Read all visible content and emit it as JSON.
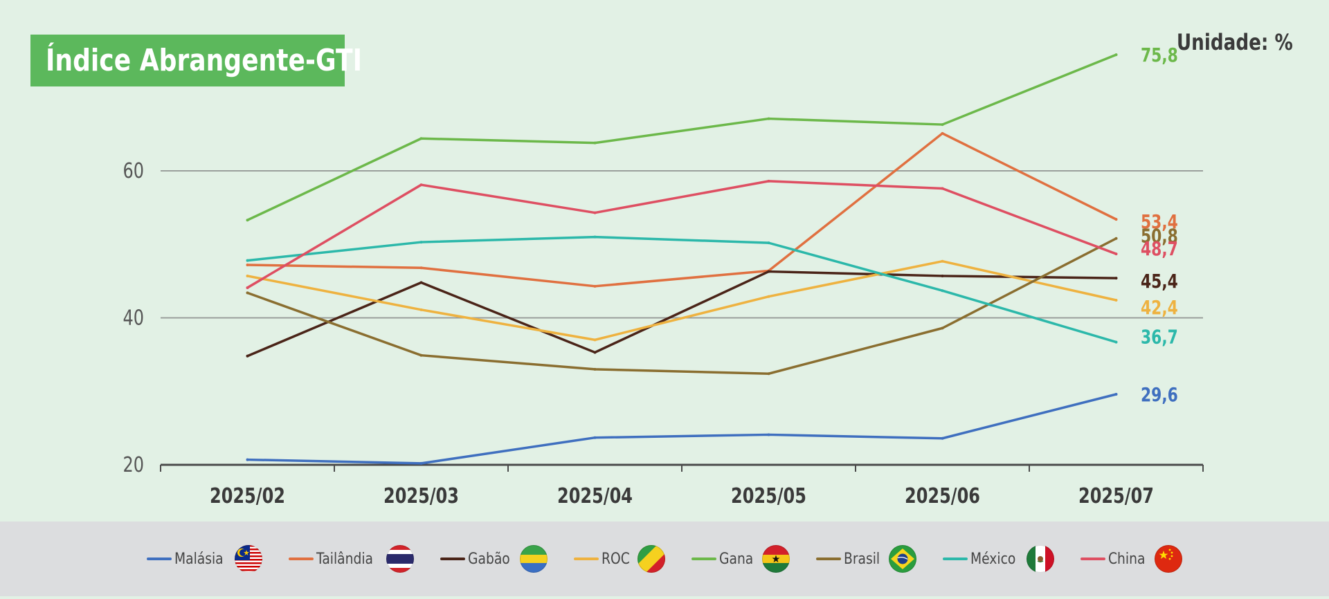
{
  "header": {
    "title": "Índice Abrangente-GTI",
    "unit": "Unidade: %"
  },
  "chart_data": {
    "type": "line",
    "title": "Índice Abrangente-GTI",
    "xlabel": "",
    "ylabel": "",
    "categories": [
      "2025/02",
      "2025/03",
      "2025/04",
      "2025/05",
      "2025/06",
      "2025/07"
    ],
    "ylim": [
      20,
      80
    ],
    "yticks": [
      20,
      40,
      60
    ],
    "grid": "horizontal at 40 and 60",
    "legend_position": "bottom",
    "series": [
      {
        "name": "Malásia",
        "color": "#3f6fbf",
        "flag": "malaysia-flag-icon",
        "values": [
          20.7,
          20.2,
          23.7,
          24.1,
          23.6,
          29.6
        ],
        "end_label": "29,6"
      },
      {
        "name": "Tailândia",
        "color": "#e07040",
        "flag": "thailand-flag-icon",
        "values": [
          47.2,
          46.8,
          44.3,
          46.4,
          65.1,
          53.4
        ],
        "end_label": "53,4"
      },
      {
        "name": "Gabão",
        "color": "#4a2418",
        "flag": "gabon-flag-icon",
        "values": [
          34.8,
          44.8,
          35.3,
          46.3,
          45.7,
          45.4
        ],
        "end_label": "45,4"
      },
      {
        "name": "ROC",
        "color": "#eeb240",
        "flag": "congo-flag-icon",
        "values": [
          45.7,
          41.1,
          37.0,
          42.9,
          47.7,
          42.4
        ],
        "end_label": "42,4"
      },
      {
        "name": "Gana",
        "color": "#6cb84a",
        "flag": "ghana-flag-icon",
        "values": [
          53.3,
          64.4,
          63.8,
          67.1,
          66.3,
          75.8
        ],
        "end_label": "75,8"
      },
      {
        "name": "Brasil",
        "color": "#8a6e30",
        "flag": "brazil-flag-icon",
        "values": [
          43.4,
          34.9,
          33.0,
          32.4,
          38.6,
          50.8
        ],
        "end_label": "50,8"
      },
      {
        "name": "México",
        "color": "#2cb8aa",
        "flag": "mexico-flag-icon",
        "values": [
          47.8,
          50.3,
          51.0,
          50.2,
          43.7,
          36.7
        ],
        "end_label": "36,7"
      },
      {
        "name": "China",
        "color": "#de4f62",
        "flag": "china-flag-icon",
        "values": [
          44.1,
          58.1,
          54.3,
          58.6,
          57.6,
          48.7
        ],
        "end_label": "48,7"
      }
    ]
  }
}
